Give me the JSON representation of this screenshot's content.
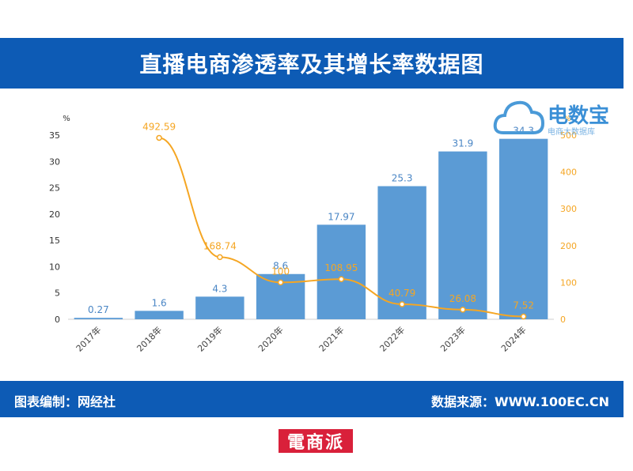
{
  "title": "直播电商渗透率及其增长率数据图",
  "footer": {
    "left": "图表编制：网经社",
    "right": "数据来源：WWW.100EC.CN"
  },
  "logo": {
    "brand": "电数宝",
    "tagline": "电商大数据库"
  },
  "stamp": "電商派",
  "colors": {
    "header": "#0d5bb5",
    "bar": "#5b9bd5",
    "line": "#f5a623"
  },
  "chart_data": {
    "type": "bar",
    "categories": [
      "2017年",
      "2018年",
      "2019年",
      "2020年",
      "2021年",
      "2022年",
      "2023年",
      "2024年"
    ],
    "series": [
      {
        "type": "bar",
        "axis": "left",
        "values": [
          0.27,
          1.6,
          4.3,
          8.6,
          17.97,
          25.3,
          31.9,
          34.3
        ],
        "labels": [
          "0.27",
          "1.6",
          "4.3",
          "8.6",
          "17.97",
          "25.3",
          "31.9",
          "34.3"
        ]
      },
      {
        "type": "line",
        "axis": "right",
        "values": [
          null,
          492.59,
          168.74,
          100,
          108.95,
          40.79,
          26.08,
          7.52
        ],
        "labels": [
          "",
          "492.59",
          "168.74",
          "100",
          "108.95",
          "40.79",
          "26.08",
          "7.52"
        ]
      }
    ],
    "y_left": {
      "unit": "%",
      "ylim": [
        0,
        35
      ],
      "ticks": [
        0,
        5,
        10,
        15,
        20,
        25,
        30,
        35
      ]
    },
    "y_right": {
      "unit": "%",
      "ylim": [
        0,
        500
      ],
      "ticks": [
        0,
        100,
        200,
        300,
        400,
        500
      ]
    },
    "grid": false
  }
}
